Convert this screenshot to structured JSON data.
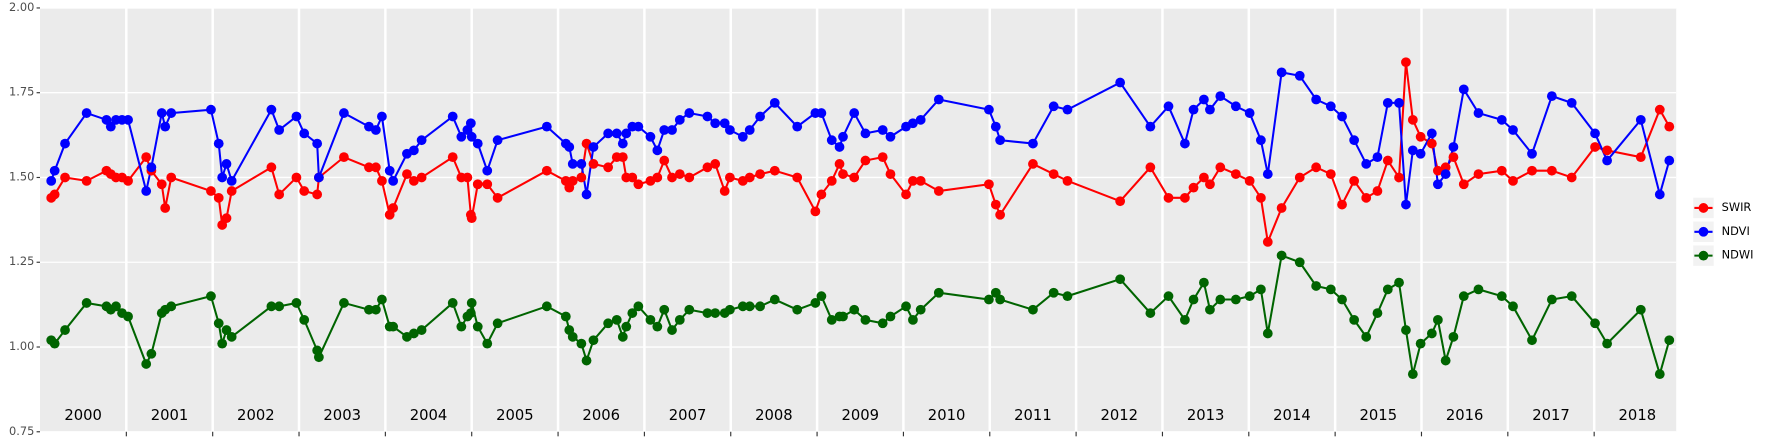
{
  "chart_data": {
    "type": "line",
    "x": [
      2000.13,
      2000.17,
      2000.29,
      2000.54,
      2000.77,
      2000.82,
      2000.88,
      2000.95,
      2001.02,
      2001.23,
      2001.29,
      2001.41,
      2001.45,
      2001.52,
      2001.98,
      2002.07,
      2002.11,
      2002.16,
      2002.22,
      2002.68,
      2002.77,
      2002.97,
      2003.06,
      2003.21,
      2003.23,
      2003.52,
      2003.81,
      2003.89,
      2003.96,
      2004.05,
      2004.09,
      2004.25,
      2004.33,
      2004.42,
      2004.78,
      2004.88,
      2004.95,
      2004.99,
      2005.0,
      2005.07,
      2005.18,
      2005.3,
      2005.87,
      2006.09,
      2006.13,
      2006.17,
      2006.27,
      2006.33,
      2006.41,
      2006.58,
      2006.68,
      2006.75,
      2006.79,
      2006.86,
      2006.93,
      2007.07,
      2007.15,
      2007.23,
      2007.32,
      2007.41,
      2007.52,
      2007.73,
      2007.82,
      2007.93,
      2007.99,
      2008.14,
      2008.22,
      2008.34,
      2008.51,
      2008.77,
      2008.98,
      2009.05,
      2009.17,
      2009.26,
      2009.3,
      2009.43,
      2009.56,
      2009.76,
      2009.85,
      2010.03,
      2010.11,
      2010.2,
      2010.41,
      2010.99,
      2011.07,
      2011.12,
      2011.5,
      2011.74,
      2011.9,
      2012.51,
      2012.86,
      2013.07,
      2013.26,
      2013.36,
      2013.48,
      2013.55,
      2013.67,
      2013.85,
      2014.01,
      2014.14,
      2014.22,
      2014.38,
      2014.59,
      2014.78,
      2014.95,
      2015.08,
      2015.22,
      2015.36,
      2015.49,
      2015.61,
      2015.74,
      2015.82,
      2015.9,
      2015.99,
      2016.12,
      2016.19,
      2016.28,
      2016.37,
      2016.49,
      2016.66,
      2016.93,
      2017.06,
      2017.28,
      2017.51,
      2017.74,
      2018.01,
      2018.15,
      2018.54,
      2018.76,
      2018.87
    ],
    "series": [
      {
        "name": "SWIR",
        "color": "#ff0000",
        "values": [
          1.44,
          1.45,
          1.5,
          1.49,
          1.52,
          1.51,
          1.5,
          1.5,
          1.49,
          1.56,
          1.52,
          1.48,
          1.41,
          1.5,
          1.46,
          1.44,
          1.36,
          1.38,
          1.46,
          1.53,
          1.45,
          1.5,
          1.46,
          1.45,
          1.5,
          1.56,
          1.53,
          1.53,
          1.49,
          1.39,
          1.41,
          1.51,
          1.49,
          1.5,
          1.56,
          1.5,
          1.5,
          1.39,
          1.38,
          1.48,
          1.48,
          1.44,
          1.52,
          1.49,
          1.47,
          1.49,
          1.5,
          1.6,
          1.54,
          1.53,
          1.56,
          1.56,
          1.5,
          1.5,
          1.48,
          1.49,
          1.5,
          1.55,
          1.5,
          1.51,
          1.5,
          1.53,
          1.54,
          1.46,
          1.5,
          1.49,
          1.5,
          1.51,
          1.52,
          1.5,
          1.4,
          1.45,
          1.49,
          1.54,
          1.51,
          1.5,
          1.55,
          1.56,
          1.51,
          1.45,
          1.49,
          1.49,
          1.46,
          1.48,
          1.42,
          1.39,
          1.54,
          1.51,
          1.49,
          1.43,
          1.53,
          1.44,
          1.44,
          1.47,
          1.5,
          1.48,
          1.53,
          1.51,
          1.49,
          1.44,
          1.31,
          1.41,
          1.5,
          1.53,
          1.51,
          1.42,
          1.49,
          1.44,
          1.46,
          1.55,
          1.5,
          1.84,
          1.67,
          1.62,
          1.6,
          1.52,
          1.53,
          1.56,
          1.48,
          1.51,
          1.52,
          1.49,
          1.52,
          1.52,
          1.5,
          1.59,
          1.58,
          1.56,
          1.7,
          1.65
        ]
      },
      {
        "name": "NDVI",
        "color": "#0000ff",
        "values": [
          1.49,
          1.52,
          1.6,
          1.69,
          1.67,
          1.65,
          1.67,
          1.67,
          1.67,
          1.46,
          1.53,
          1.69,
          1.65,
          1.69,
          1.7,
          1.6,
          1.5,
          1.54,
          1.49,
          1.7,
          1.64,
          1.68,
          1.63,
          1.6,
          1.5,
          1.69,
          1.65,
          1.64,
          1.68,
          1.52,
          1.49,
          1.57,
          1.58,
          1.61,
          1.68,
          1.62,
          1.64,
          1.66,
          1.62,
          1.6,
          1.52,
          1.61,
          1.65,
          1.6,
          1.59,
          1.54,
          1.54,
          1.45,
          1.59,
          1.63,
          1.63,
          1.6,
          1.63,
          1.65,
          1.65,
          1.62,
          1.58,
          1.64,
          1.64,
          1.67,
          1.69,
          1.68,
          1.66,
          1.66,
          1.64,
          1.62,
          1.64,
          1.68,
          1.72,
          1.65,
          1.69,
          1.69,
          1.61,
          1.59,
          1.62,
          1.69,
          1.63,
          1.64,
          1.62,
          1.65,
          1.66,
          1.67,
          1.73,
          1.7,
          1.65,
          1.61,
          1.6,
          1.71,
          1.7,
          1.78,
          1.65,
          1.71,
          1.6,
          1.7,
          1.73,
          1.7,
          1.74,
          1.71,
          1.69,
          1.61,
          1.51,
          1.81,
          1.8,
          1.73,
          1.71,
          1.68,
          1.61,
          1.54,
          1.56,
          1.72,
          1.72,
          1.42,
          1.58,
          1.57,
          1.63,
          1.48,
          1.51,
          1.59,
          1.76,
          1.69,
          1.67,
          1.64,
          1.57,
          1.74,
          1.72,
          1.63,
          1.55,
          1.67,
          1.45,
          1.55
        ]
      },
      {
        "name": "NDWI",
        "color": "#006400",
        "values": [
          1.02,
          1.01,
          1.05,
          1.13,
          1.12,
          1.11,
          1.12,
          1.1,
          1.09,
          0.95,
          0.98,
          1.1,
          1.11,
          1.12,
          1.15,
          1.07,
          1.01,
          1.05,
          1.03,
          1.12,
          1.12,
          1.13,
          1.08,
          0.99,
          0.97,
          1.13,
          1.11,
          1.11,
          1.14,
          1.06,
          1.06,
          1.03,
          1.04,
          1.05,
          1.13,
          1.06,
          1.09,
          1.1,
          1.13,
          1.06,
          1.01,
          1.07,
          1.12,
          1.09,
          1.05,
          1.03,
          1.01,
          0.96,
          1.02,
          1.07,
          1.08,
          1.03,
          1.06,
          1.1,
          1.12,
          1.08,
          1.06,
          1.11,
          1.05,
          1.08,
          1.11,
          1.1,
          1.1,
          1.1,
          1.11,
          1.12,
          1.12,
          1.12,
          1.14,
          1.11,
          1.13,
          1.15,
          1.08,
          1.09,
          1.09,
          1.11,
          1.08,
          1.07,
          1.09,
          1.12,
          1.08,
          1.11,
          1.16,
          1.14,
          1.16,
          1.14,
          1.11,
          1.16,
          1.15,
          1.2,
          1.1,
          1.15,
          1.08,
          1.14,
          1.19,
          1.11,
          1.14,
          1.14,
          1.15,
          1.17,
          1.04,
          1.27,
          1.25,
          1.18,
          1.17,
          1.14,
          1.08,
          1.03,
          1.1,
          1.17,
          1.19,
          1.05,
          0.92,
          1.01,
          1.04,
          1.08,
          0.96,
          1.03,
          1.15,
          1.17,
          1.15,
          1.12,
          1.02,
          1.14,
          1.15,
          1.07,
          1.01,
          1.11,
          0.92,
          1.02
        ]
      }
    ],
    "xlim": [
      2000,
      2018.95
    ],
    "xticks": [
      2001,
      2002,
      2003,
      2004,
      2005,
      2006,
      2007,
      2008,
      2009,
      2010,
      2011,
      2012,
      2013,
      2014,
      2015,
      2016,
      2017,
      2018
    ],
    "year_labels": [
      2000,
      2001,
      2002,
      2003,
      2004,
      2005,
      2006,
      2007,
      2008,
      2009,
      2010,
      2011,
      2012,
      2013,
      2014,
      2015,
      2016,
      2017,
      2018
    ],
    "ylim": [
      0.75,
      2.0
    ],
    "yticks": [
      0.75,
      {
        "value": 1.0,
        "label": "1.00"
      },
      1.25,
      {
        "value": 1.5,
        "label": "1.50"
      },
      1.75,
      {
        "value": 2.0,
        "label": "2.00"
      }
    ],
    "grid": true,
    "legend": "right"
  }
}
